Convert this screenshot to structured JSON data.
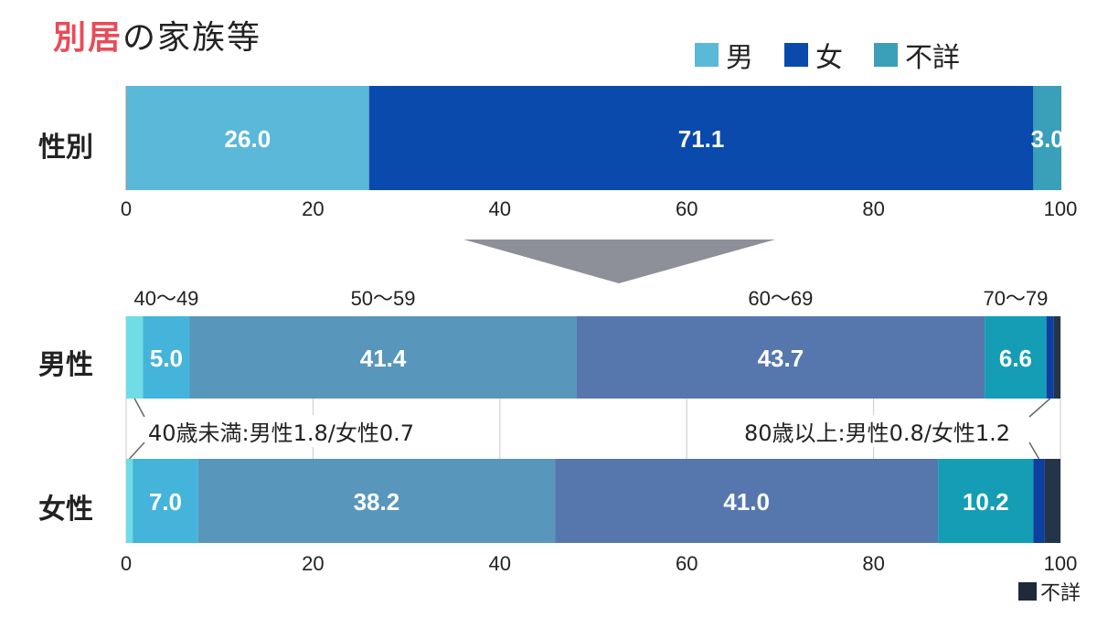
{
  "title": {
    "highlight": "別居",
    "rest": "の家族等"
  },
  "legend": [
    {
      "label": "男",
      "color": "#5ab8d9"
    },
    {
      "label": "女",
      "color": "#0a4aad"
    },
    {
      "label": "不詳",
      "color": "#3a9fb8"
    }
  ],
  "labels": {
    "gender_row": "性別",
    "male_row": "男性",
    "female_row": "女性"
  },
  "annotations": {
    "under40": "40歳未満:男性1.8/女性0.7",
    "over80": "80歳以上:男性0.8/女性1.2"
  },
  "footnote": {
    "label": "不詳",
    "color": "#1f2a3a"
  },
  "chart_data": [
    {
      "type": "bar",
      "orientation": "horizontal-stacked",
      "categories": [
        "性別"
      ],
      "series": [
        {
          "name": "男",
          "values": [
            26.0
          ],
          "color": "#5ab8d9"
        },
        {
          "name": "女",
          "values": [
            71.1
          ],
          "color": "#0a4aad"
        },
        {
          "name": "不詳",
          "values": [
            3.0
          ],
          "color": "#3a9fb8"
        }
      ],
      "xlim": [
        0,
        100
      ],
      "xticks": [
        0,
        20,
        40,
        60,
        80,
        100
      ]
    },
    {
      "type": "bar",
      "orientation": "horizontal-stacked",
      "categories": [
        "男性",
        "女性"
      ],
      "series": [
        {
          "name": "40歳未満",
          "values": [
            1.8,
            0.7
          ],
          "color": "#6fdce6"
        },
        {
          "name": "40～49",
          "values": [
            5.0,
            7.0
          ],
          "color": "#45b4da"
        },
        {
          "name": "50～59",
          "values": [
            41.4,
            38.2
          ],
          "color": "#5896bb"
        },
        {
          "name": "60～69",
          "values": [
            43.7,
            41.0
          ],
          "color": "#5677ae"
        },
        {
          "name": "70～79",
          "values": [
            6.6,
            10.2
          ],
          "color": "#149db5"
        },
        {
          "name": "80歳以上",
          "values": [
            0.8,
            1.2
          ],
          "color": "#0b3fa0"
        },
        {
          "name": "不詳",
          "values": [
            0.7,
            1.7
          ],
          "color": "#253549"
        }
      ],
      "labeled_series": [
        "40～49",
        "50～59",
        "60～69",
        "70～79"
      ],
      "xlim": [
        0,
        100
      ],
      "xticks": [
        0,
        20,
        40,
        60,
        80,
        100
      ]
    }
  ]
}
